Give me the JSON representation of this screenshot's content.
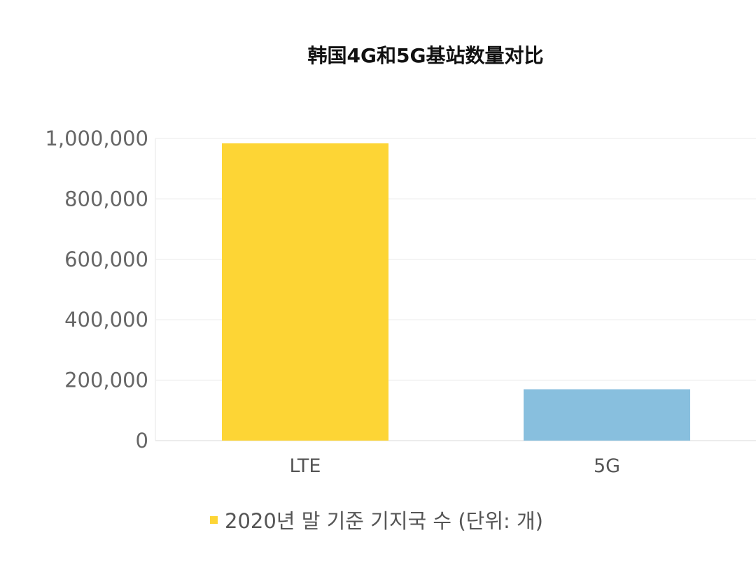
{
  "chart_data": {
    "type": "bar",
    "title": "韩国4G和5G基站数量对比",
    "categories": [
      "LTE",
      "5G"
    ],
    "series": [
      {
        "name": "2020년 말 기준 기지국 수 (단위: 개)",
        "values": [
          984000,
          170000
        ],
        "colors": [
          "#FDD535",
          "#88BFDE"
        ]
      }
    ],
    "yticks": [
      "0",
      "200,000",
      "400,000",
      "600,000",
      "800,000",
      "1,000,000"
    ],
    "ytick_values": [
      0,
      200000,
      400000,
      600000,
      800000,
      1000000
    ],
    "ylim": [
      0,
      1000000
    ],
    "xlabel": "",
    "ylabel": "",
    "grid": true,
    "legend_position": "bottom"
  }
}
